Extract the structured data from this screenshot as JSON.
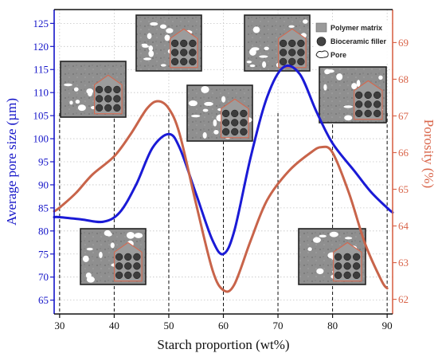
{
  "chart_data": {
    "type": "line",
    "xlabel": "Starch proportion (wt%)",
    "ylabel_left": "Average pore size (µm)",
    "ylabel_right": "Porosity (%)",
    "xlim": [
      29,
      91
    ],
    "ylim_left": [
      62,
      128
    ],
    "ylim_right": [
      61.6,
      69.9
    ],
    "x_ticks": [
      "30",
      "40",
      "50",
      "60",
      "70",
      "80",
      "90"
    ],
    "y_left_ticks": [
      "65",
      "70",
      "75",
      "80",
      "85",
      "90",
      "95",
      "100",
      "105",
      "110",
      "115",
      "120",
      "125"
    ],
    "y_right_ticks": [
      "62",
      "63",
      "64",
      "65",
      "66",
      "67",
      "68",
      "69"
    ],
    "left_axis_color": "#1414c8",
    "right_axis_color": "#d9654a",
    "grid": true,
    "reference_x": [
      30,
      40,
      50,
      60,
      70,
      80,
      90
    ],
    "series": [
      {
        "axis": "left",
        "color": "#1a1ad6",
        "points": [
          [
            29,
            83
          ],
          [
            30,
            83
          ],
          [
            34,
            82.5
          ],
          [
            38,
            82
          ],
          [
            41,
            84
          ],
          [
            44,
            90
          ],
          [
            47,
            98
          ],
          [
            50,
            101
          ],
          [
            52,
            98
          ],
          [
            55,
            88
          ],
          [
            58,
            78
          ],
          [
            60,
            75
          ],
          [
            62,
            80
          ],
          [
            65,
            96
          ],
          [
            68,
            109
          ],
          [
            71,
            115.5
          ],
          [
            74,
            114
          ],
          [
            77,
            106
          ],
          [
            80,
            99
          ],
          [
            84,
            93
          ],
          [
            87,
            88.5
          ],
          [
            90,
            85
          ],
          [
            91,
            84
          ]
        ]
      },
      {
        "axis": "right",
        "color": "#c8644a",
        "points": [
          [
            29,
            64.4
          ],
          [
            30,
            64.5
          ],
          [
            33,
            64.9
          ],
          [
            36,
            65.4
          ],
          [
            40,
            65.9
          ],
          [
            43,
            66.5
          ],
          [
            46,
            67.2
          ],
          [
            48,
            67.4
          ],
          [
            50,
            67.2
          ],
          [
            52,
            66.5
          ],
          [
            55,
            64.6
          ],
          [
            58,
            62.8
          ],
          [
            60,
            62.25
          ],
          [
            62,
            62.4
          ],
          [
            65,
            63.6
          ],
          [
            68,
            64.7
          ],
          [
            72,
            65.5
          ],
          [
            76,
            66.0
          ],
          [
            78,
            66.15
          ],
          [
            80,
            66.0
          ],
          [
            83,
            64.9
          ],
          [
            86,
            63.5
          ],
          [
            89,
            62.5
          ],
          [
            90,
            62.3
          ]
        ]
      }
    ],
    "legend": {
      "position": "top-right",
      "entries": [
        {
          "label": "Polymer matrix",
          "symbol": "square"
        },
        {
          "label": "Bioceramic filler",
          "symbol": "circle"
        },
        {
          "label": "Pore",
          "symbol": "blob"
        }
      ]
    },
    "inset_micrographs_at_x": [
      40,
      50,
      60,
      70,
      90,
      50,
      80
    ]
  }
}
